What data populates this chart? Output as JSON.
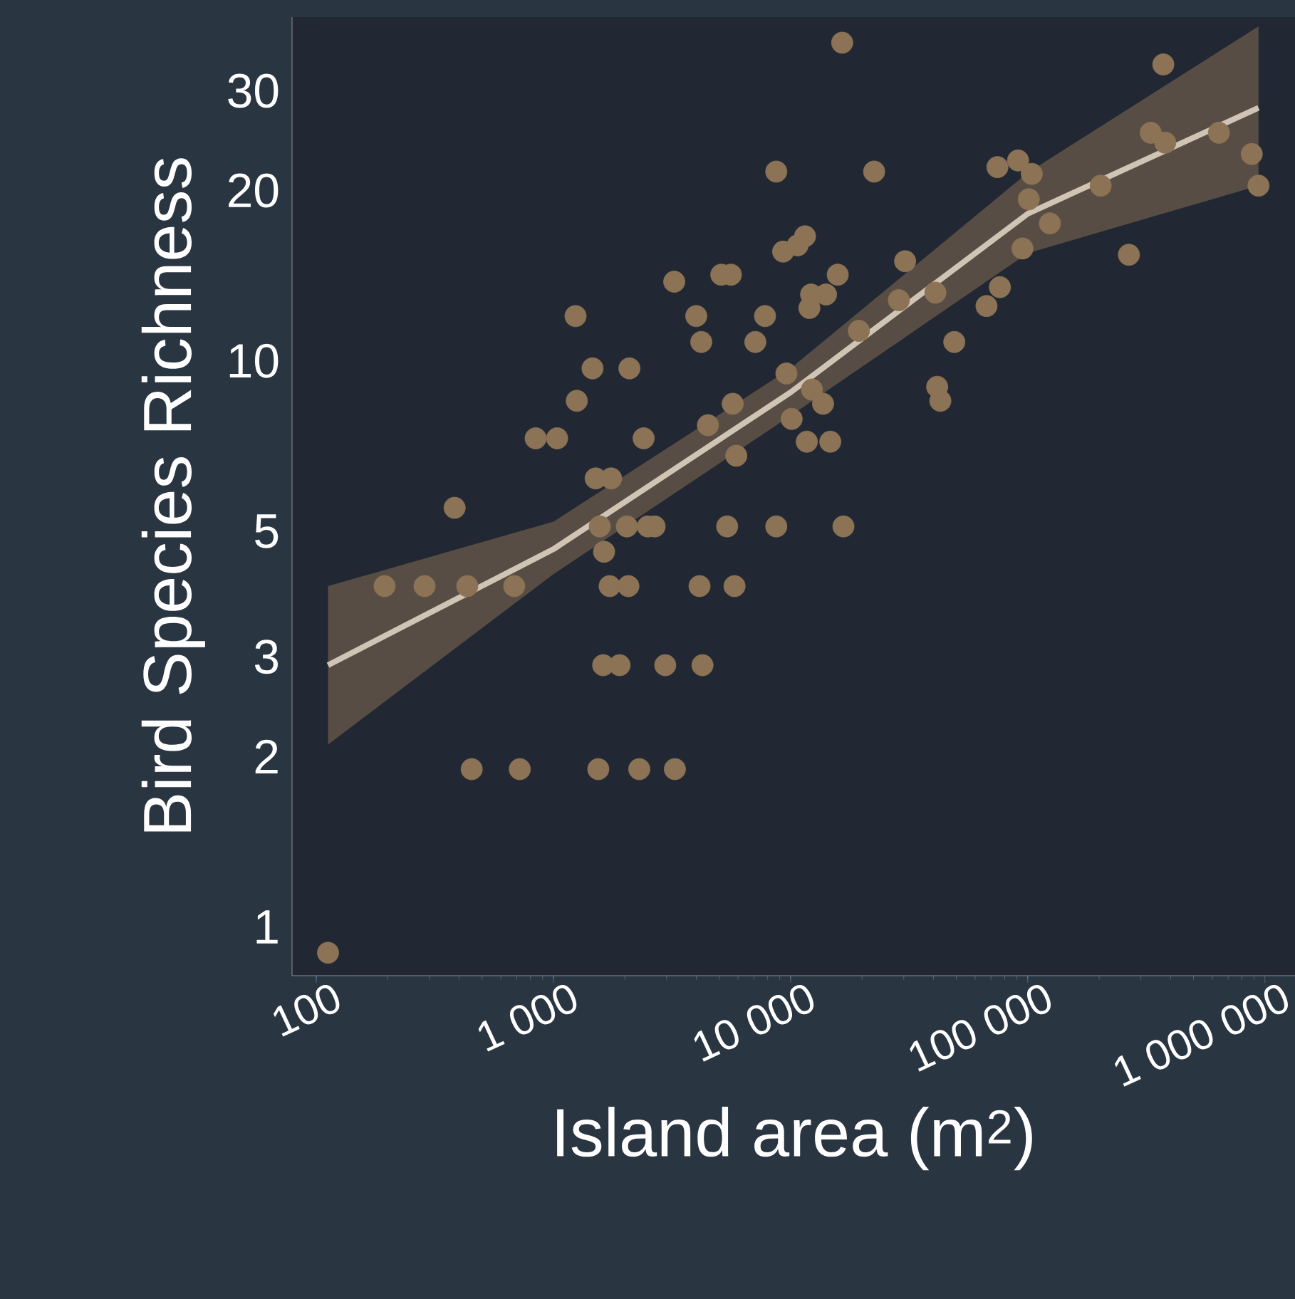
{
  "chart_data": {
    "type": "scatter",
    "xlabel": "Island area (m$^{2}$)",
    "ylabel": "Bird Species Richness",
    "log": "xy",
    "xlim": [
      79,
      1340000
    ],
    "ylim": [
      0.82,
      40.5
    ],
    "xticks": [
      100,
      {
        "value": 1000,
        "label": "1 000"
      },
      {
        "value": 10000,
        "label": "10 000"
      },
      {
        "value": 100000,
        "label": "100 000"
      },
      {
        "value": 1000000,
        "label": "1 000 000"
      }
    ],
    "yticks": [
      1,
      2,
      3,
      5,
      10,
      20,
      30
    ],
    "series": [
      {
        "type": "scatter",
        "marker": "circle",
        "color": "#8c7355",
        "x": [
          112,
          194,
          286,
          383,
          433,
          452,
          683,
          721,
          841,
          1036,
          1239,
          1254,
          1461,
          1506,
          1545,
          1568,
          1634,
          1725,
          1750,
          1620,
          1900,
          2040,
          2070,
          2090,
          2300,
          2400,
          2500,
          2670,
          2960,
          3230,
          3250,
          4000,
          4200,
          4130,
          4250,
          4480,
          5100,
          5600,
          5400,
          5700,
          5800,
          5900,
          7100,
          7800,
          8700,
          8700,
          9300,
          9600,
          10100,
          10700,
          11500,
          11700,
          12000,
          12200,
          12300,
          13700,
          14100,
          14700,
          15800,
          16500,
          16700,
          19400,
          22500,
          28600,
          30400,
          40800,
          41500,
          42800,
          49000,
          67000,
          74500,
          76300,
          91000,
          101000,
          104000,
          95000,
          124000,
          203000,
          267000,
          330000,
          373000,
          380000,
          640000,
          880000,
          940000
        ],
        "values": [
          0.9,
          4.0,
          4.0,
          5.5,
          4.0,
          1.9,
          4.0,
          1.9,
          7.3,
          7.3,
          12,
          8.5,
          9.7,
          6.2,
          1.9,
          5.1,
          4.6,
          4.0,
          6.2,
          2.9,
          2.9,
          5.1,
          4.0,
          9.7,
          1.9,
          7.3,
          5.1,
          5.1,
          2.9,
          13.8,
          1.9,
          12,
          10.8,
          4.0,
          2.9,
          7.7,
          14.2,
          14.2,
          5.1,
          8.4,
          4.0,
          6.8,
          10.8,
          12,
          21.6,
          5.1,
          15.6,
          9.5,
          7.9,
          16,
          16.6,
          7.2,
          12.4,
          13.1,
          8.9,
          8.4,
          13.1,
          7.2,
          14.2,
          36.5,
          5.1,
          11.3,
          21.6,
          12.8,
          15,
          13.2,
          9.0,
          8.5,
          10.8,
          12.5,
          22,
          13.5,
          22.6,
          19.3,
          21.4,
          15.8,
          17.5,
          20.4,
          15.4,
          25.3,
          33.4,
          24.3,
          25.3,
          23.2,
          20.4
        ]
      },
      {
        "type": "line",
        "marker": "none",
        "color": "#d0c4b4",
        "x": [
          112,
          1000,
          10000,
          100000,
          940000
        ],
        "values": [
          2.9,
          4.65,
          8.8,
          18.2,
          28
        ],
        "lower": [
          2.1,
          4.2,
          8.0,
          15.5,
          20.4
        ],
        "upper": [
          4.0,
          5.2,
          9.7,
          21.5,
          39
        ]
      }
    ]
  }
}
